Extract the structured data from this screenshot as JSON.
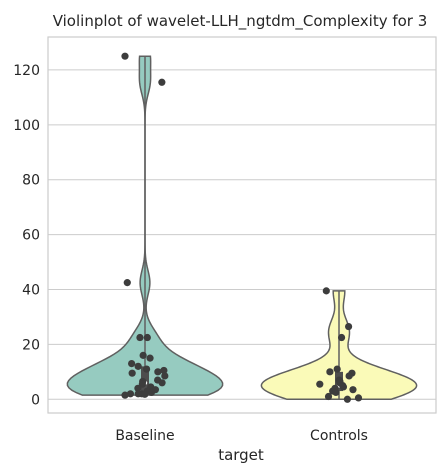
{
  "chart_data": {
    "type": "violin",
    "title": "Violinplot of wavelet-LLH_ngtdm_Complexity for 3",
    "xlabel": "target",
    "ylabel": "",
    "categories": [
      "Baseline",
      "Controls"
    ],
    "ylim": [
      -5,
      132
    ],
    "yticks": [
      0,
      20,
      40,
      60,
      80,
      100,
      120
    ],
    "grid": true,
    "colors": {
      "Baseline": "#96cbc0",
      "Controls": "#fafab8"
    },
    "series": [
      {
        "category": "Baseline",
        "range": [
          1.5,
          125
        ],
        "quartiles": [
          3,
          6,
          12
        ],
        "points": [
          125,
          115.5,
          42.5,
          22.5,
          22.5,
          16,
          15,
          13,
          12,
          11,
          10.5,
          10,
          9.5,
          8.5,
          7,
          6.5,
          6,
          5.5,
          4.5,
          4,
          3.5,
          3,
          2.5,
          2,
          2,
          2,
          1.8,
          1.5
        ]
      },
      {
        "category": "Controls",
        "range": [
          0,
          39.5
        ],
        "quartiles": [
          3,
          5,
          10
        ],
        "points": [
          39.5,
          26.5,
          22.5,
          11,
          10,
          9.5,
          8.5,
          7,
          6.5,
          6,
          5.5,
          5,
          4.5,
          4,
          3.5,
          3,
          2.5,
          1,
          0.5,
          0
        ]
      }
    ]
  }
}
